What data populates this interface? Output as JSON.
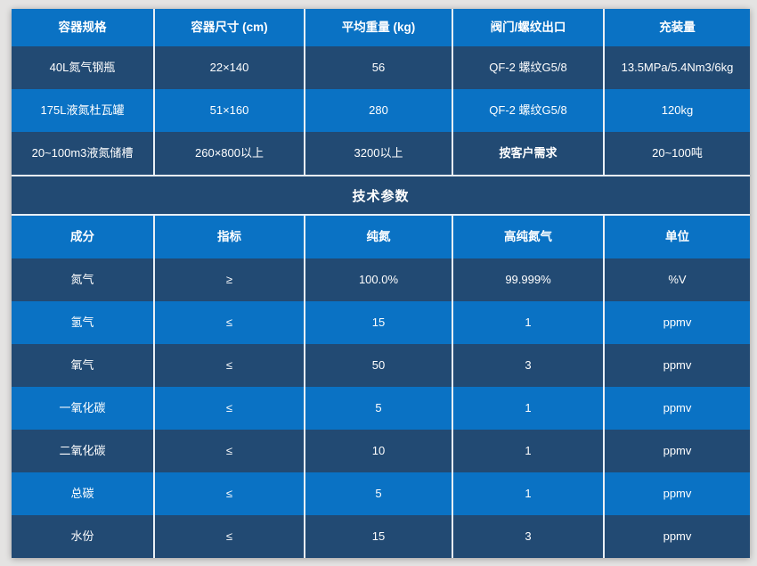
{
  "colors": {
    "row_bright_blue": "#0a72c4",
    "row_dark_navy": "#224a73",
    "divider_white": "#e9eff5",
    "page_background": "#e4e3e2",
    "text": "#ffffff"
  },
  "section_title": "技术参数",
  "spec_table": {
    "headers": [
      "容器规格",
      "容器尺寸 (cm)",
      "平均重量 (kg)",
      "阀门/螺纹出口",
      "充装量"
    ],
    "rows": [
      {
        "cells": [
          "40L氮气钢瓶",
          "22×140",
          "56",
          "QF-2 螺纹G5/8",
          "13.5MPa/5.4Nm3/6kg"
        ]
      },
      {
        "cells": [
          "175L液氮杜瓦罐",
          "51×160",
          "280",
          "QF-2 螺纹G5/8",
          "120kg"
        ]
      },
      {
        "cells": [
          "20~100m3液氮储槽",
          "260×800以上",
          "3200以上",
          "按客户需求",
          "20~100吨"
        ]
      }
    ]
  },
  "param_table": {
    "headers": [
      "成分",
      "指标",
      "纯氮",
      "高纯氮气",
      "单位"
    ],
    "rows": [
      [
        "氮气",
        "≥",
        "100.0%",
        "99.999%",
        "%V"
      ],
      [
        "氢气",
        "≤",
        "15",
        "1",
        "ppmv"
      ],
      [
        "氧气",
        "≤",
        "50",
        "3",
        "ppmv"
      ],
      [
        "一氧化碳",
        "≤",
        "5",
        "1",
        "ppmv"
      ],
      [
        "二氧化碳",
        "≤",
        "10",
        "1",
        "ppmv"
      ],
      [
        "总碳",
        "≤",
        "5",
        "1",
        "ppmv"
      ],
      [
        "水份",
        "≤",
        "15",
        "3",
        "ppmv"
      ]
    ]
  }
}
